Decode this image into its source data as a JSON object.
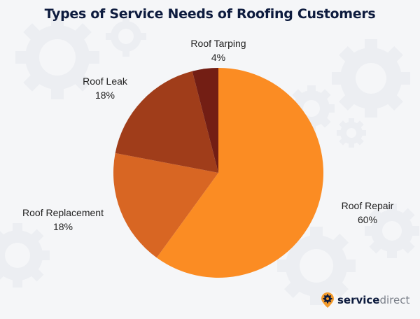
{
  "title": "Types of Service Needs of Roofing Customers",
  "brand": {
    "bold": "service",
    "light": "direct",
    "icon": "gear-pin-icon"
  },
  "colors": {
    "background": "#f5f6f8",
    "title": "#0d1b3e",
    "gear": "#eceef2"
  },
  "chart_data": {
    "type": "pie",
    "title": "Types of Service Needs of Roofing Customers",
    "start_angle": "12 o'clock, clockwise",
    "categories": [
      "Roof Repair",
      "Roof Replacement",
      "Roof Leak",
      "Roof Tarping"
    ],
    "values": [
      60,
      18,
      18,
      4
    ],
    "unit": "%",
    "colors": [
      "#fb8c23",
      "#d86623",
      "#a03d1a",
      "#731e14"
    ],
    "labels": [
      {
        "name": "Roof Repair",
        "value": "60%"
      },
      {
        "name": "Roof Replacement",
        "value": "18%"
      },
      {
        "name": "Roof Leak",
        "value": "18%"
      },
      {
        "name": "Roof Tarping",
        "value": "4%"
      }
    ],
    "legend": "none (outside data labels)"
  }
}
